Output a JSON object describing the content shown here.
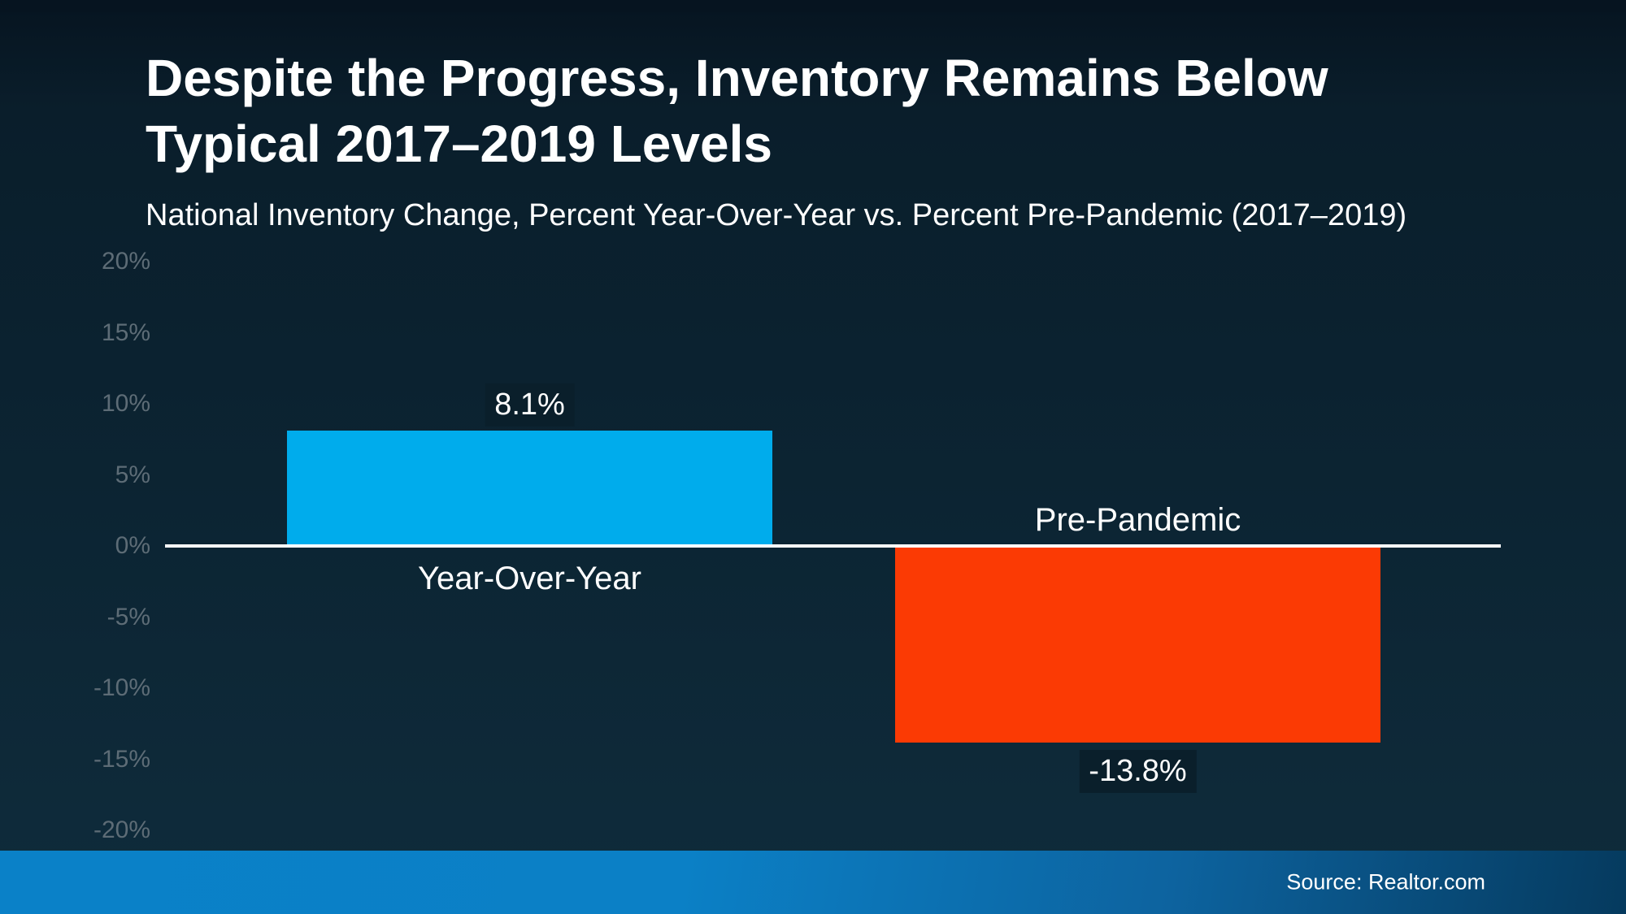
{
  "header": {
    "title_line1": "Despite the Progress, Inventory Remains Below",
    "title_line2": "Typical 2017–2019 Levels",
    "subtitle": "National Inventory Change, Percent Year-Over-Year vs. Percent Pre-Pandemic (2017–2019)"
  },
  "footer": {
    "source": "Source: Realtor.com"
  },
  "colors": {
    "bar_positive": "#00acec",
    "bar_negative": "#fb3a04",
    "axis_tick": "#5d6c76",
    "zero_line": "#ffffff",
    "value_label_bg": "#0a1f2b",
    "background_top": "#061420",
    "background_bottom": "#0f2c3c",
    "footer_gradient_left": "#0a81c8",
    "footer_gradient_right": "#053a5e"
  },
  "chart_data": {
    "type": "bar",
    "title": "Despite the Progress, Inventory Remains Below Typical 2017–2019 Levels",
    "subtitle": "National Inventory Change, Percent Year-Over-Year vs. Percent Pre-Pandemic (2017–2019)",
    "categories": [
      "Year-Over-Year",
      "Pre-Pandemic"
    ],
    "values": [
      8.1,
      -13.8
    ],
    "value_labels": [
      "8.1%",
      "-13.8%"
    ],
    "bar_colors": [
      "#00acec",
      "#fb3a04"
    ],
    "xlabel": "",
    "ylabel": "",
    "ylim": [
      -20,
      20
    ],
    "ytick_step": 5,
    "ytick_labels": [
      "20%",
      "15%",
      "10%",
      "5%",
      "0%",
      "-5%",
      "-10%",
      "-15%",
      "-20%"
    ],
    "ytick_values": [
      20,
      15,
      10,
      5,
      0,
      -5,
      -10,
      -15,
      -20
    ],
    "grid": false,
    "legend": "none",
    "baseline_at_zero": true,
    "source": "Source: Realtor.com"
  }
}
